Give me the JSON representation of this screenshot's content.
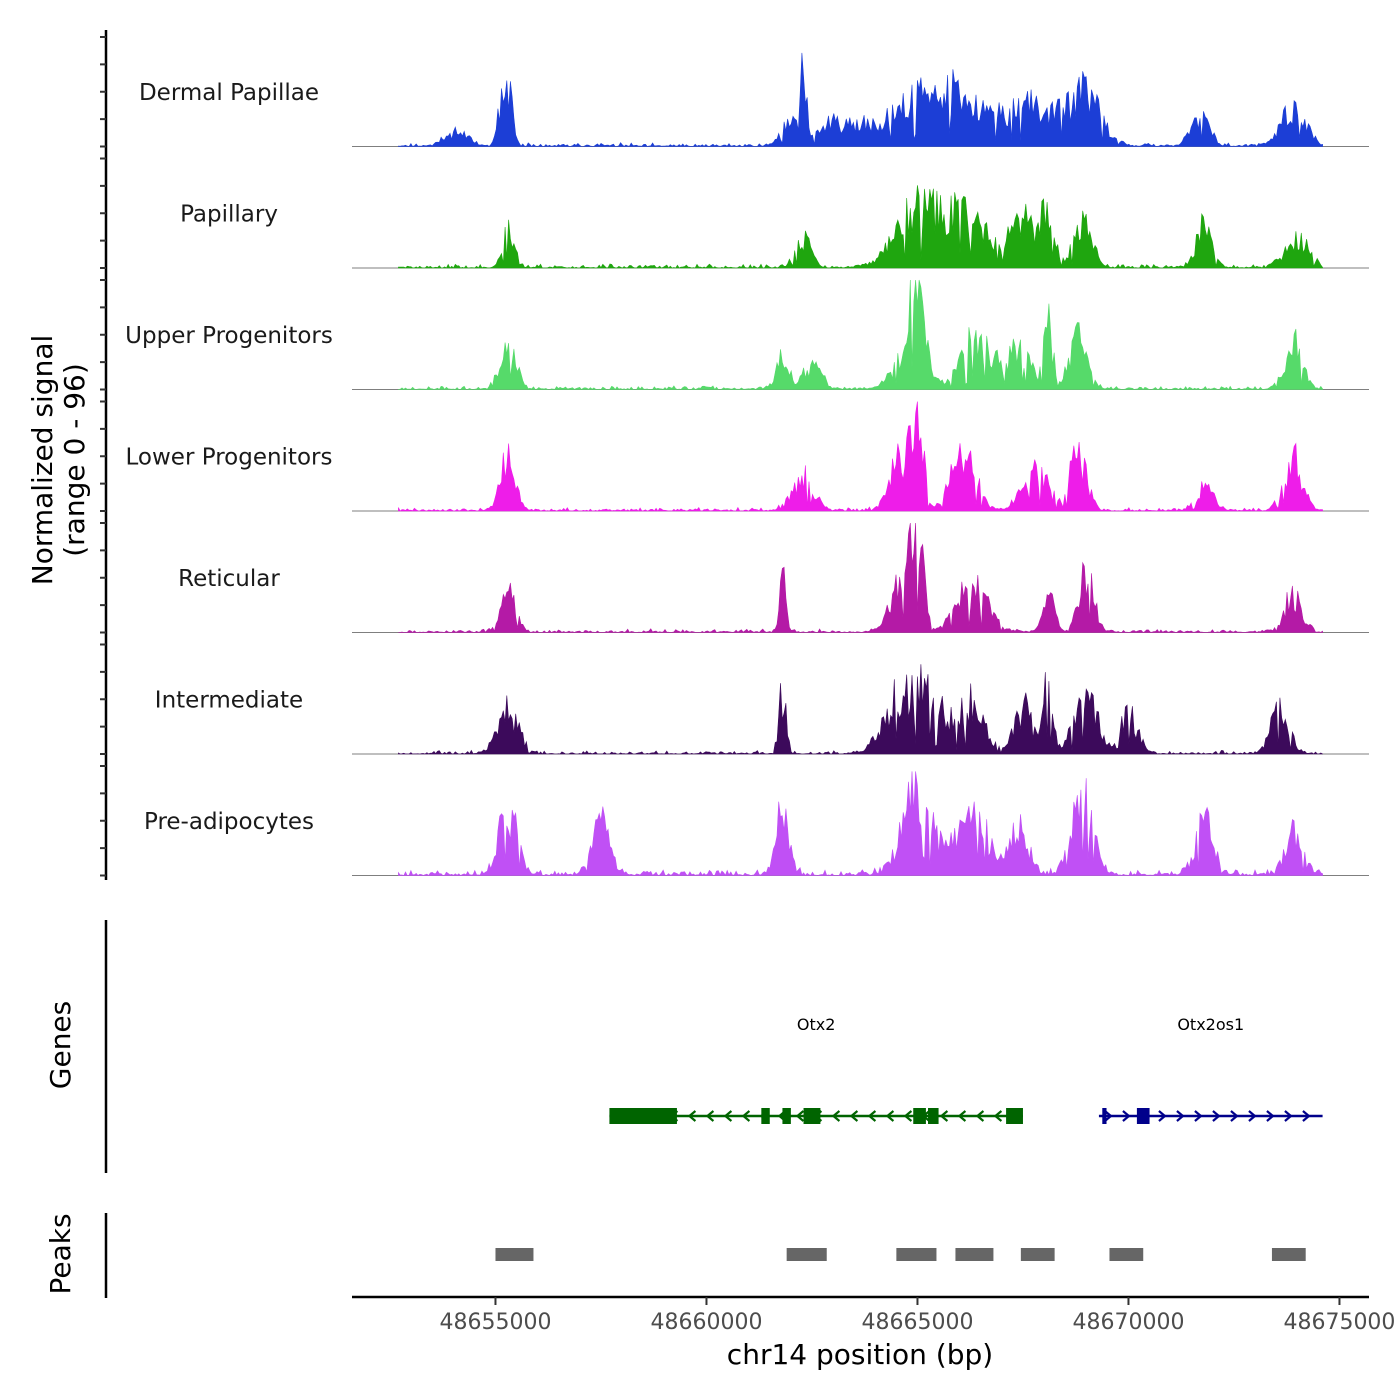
{
  "chart_data": {
    "type": "area",
    "chromosome": "chr14",
    "xlabel": "chr14 position (bp)",
    "xlim": [
      48651600,
      48675700
    ],
    "x_ticks": [
      48655000,
      48660000,
      48665000,
      48670000,
      48675000
    ],
    "x_tick_labels": [
      "48655000",
      "48660000",
      "48665000",
      "48670000",
      "48675000"
    ],
    "ylabel_line1": "Normalized signal",
    "ylabel_line2": "(range 0 - 96)",
    "ylim": [
      0,
      96
    ],
    "signal_x_range": [
      48652700,
      48674600
    ],
    "series": [
      {
        "name": "Dermal Papillae",
        "color": "#1c3ed6",
        "seed": 11,
        "noise": 0.3,
        "peaks": [
          [
            48655300,
            0.55,
            130
          ],
          [
            48655100,
            0.3,
            100
          ],
          [
            48654100,
            0.12,
            400
          ],
          [
            48662300,
            0.58,
            90
          ],
          [
            48662000,
            0.2,
            300
          ],
          [
            48663000,
            0.15,
            500
          ],
          [
            48665000,
            0.32,
            1500
          ],
          [
            48666000,
            0.28,
            1000
          ],
          [
            48667800,
            0.34,
            800
          ],
          [
            48669000,
            0.45,
            500
          ],
          [
            48671700,
            0.28,
            300
          ],
          [
            48673900,
            0.32,
            400
          ]
        ]
      },
      {
        "name": "Papillary",
        "color": "#1fa60f",
        "seed": 23,
        "noise": 0.35,
        "peaks": [
          [
            48655300,
            0.3,
            200
          ],
          [
            48662300,
            0.25,
            250
          ],
          [
            48665000,
            0.55,
            700
          ],
          [
            48666200,
            0.45,
            700
          ],
          [
            48667500,
            0.4,
            400
          ],
          [
            48668100,
            0.55,
            200
          ],
          [
            48668900,
            0.4,
            300
          ],
          [
            48671800,
            0.35,
            250
          ],
          [
            48674000,
            0.25,
            400
          ]
        ]
      },
      {
        "name": "Upper Progenitors",
        "color": "#56da6a",
        "seed": 37,
        "noise": 0.3,
        "peaks": [
          [
            48655300,
            0.42,
            250
          ],
          [
            48661800,
            0.3,
            200
          ],
          [
            48662500,
            0.2,
            300
          ],
          [
            48665000,
            0.7,
            250
          ],
          [
            48664800,
            0.3,
            500
          ],
          [
            48666400,
            0.45,
            500
          ],
          [
            48667400,
            0.35,
            400
          ],
          [
            48668100,
            0.55,
            150
          ],
          [
            48668800,
            0.45,
            300
          ],
          [
            48673900,
            0.4,
            300
          ]
        ]
      },
      {
        "name": "Lower Progenitors",
        "color": "#ee1de9",
        "seed": 41,
        "noise": 0.3,
        "peaks": [
          [
            48655300,
            0.48,
            250
          ],
          [
            48662300,
            0.3,
            350
          ],
          [
            48665000,
            0.9,
            180
          ],
          [
            48664600,
            0.45,
            350
          ],
          [
            48666100,
            0.55,
            400
          ],
          [
            48667800,
            0.4,
            400
          ],
          [
            48668800,
            0.45,
            300
          ],
          [
            48671800,
            0.2,
            300
          ],
          [
            48673900,
            0.45,
            300
          ]
        ]
      },
      {
        "name": "Reticular",
        "color": "#b41aa6",
        "seed": 53,
        "noise": 0.3,
        "peaks": [
          [
            48655300,
            0.32,
            250
          ],
          [
            48661800,
            0.5,
            100
          ],
          [
            48664700,
            0.55,
            400
          ],
          [
            48665000,
            0.7,
            180
          ],
          [
            48666300,
            0.4,
            500
          ],
          [
            48668100,
            0.3,
            200
          ],
          [
            48669000,
            0.5,
            250
          ],
          [
            48673900,
            0.32,
            300
          ]
        ]
      },
      {
        "name": "Intermediate",
        "color": "#3c0a5b",
        "seed": 67,
        "noise": 0.3,
        "peaks": [
          [
            48655300,
            0.38,
            350
          ],
          [
            48661800,
            0.55,
            120
          ],
          [
            48664500,
            0.45,
            500
          ],
          [
            48665300,
            0.55,
            500
          ],
          [
            48666300,
            0.45,
            400
          ],
          [
            48668100,
            0.65,
            150
          ],
          [
            48667500,
            0.4,
            300
          ],
          [
            48669000,
            0.45,
            400
          ],
          [
            48670000,
            0.35,
            300
          ],
          [
            48673600,
            0.4,
            300
          ]
        ]
      },
      {
        "name": "Pre-adipocytes",
        "color": "#c050f5",
        "seed": 79,
        "noise": 0.55,
        "peaks": [
          [
            48655300,
            0.55,
            300
          ],
          [
            48657500,
            0.45,
            300
          ],
          [
            48661800,
            0.6,
            200
          ],
          [
            48665000,
            0.7,
            500
          ],
          [
            48666300,
            0.55,
            500
          ],
          [
            48668900,
            0.7,
            350
          ],
          [
            48667400,
            0.4,
            300
          ],
          [
            48671800,
            0.45,
            300
          ],
          [
            48673900,
            0.35,
            300
          ]
        ]
      }
    ],
    "genes": [
      {
        "name": "Otx2",
        "strand": "-",
        "color": "#006400",
        "start": 48657700,
        "end": 48667500,
        "exons": [
          [
            48657700,
            48659300
          ],
          [
            48661300,
            48661500
          ],
          [
            48661800,
            48662000
          ],
          [
            48662300,
            48662700
          ],
          [
            48664900,
            48665200
          ],
          [
            48665250,
            48665500
          ],
          [
            48667100,
            48667500
          ]
        ]
      },
      {
        "name": "Otx2os1",
        "strand": "+",
        "color": "#00008b",
        "start": 48669300,
        "end": 48674600,
        "exons": [
          [
            48669380,
            48669480
          ],
          [
            48670200,
            48670500
          ]
        ]
      }
    ],
    "peaks": [
      [
        48655000,
        48655900
      ],
      [
        48661900,
        48662850
      ],
      [
        48664500,
        48665450
      ],
      [
        48665900,
        48666800
      ],
      [
        48667450,
        48668250
      ],
      [
        48669550,
        48670350
      ],
      [
        48673400,
        48674200
      ]
    ],
    "track_titles": {
      "genes": "Genes",
      "peaks": "Peaks"
    }
  }
}
